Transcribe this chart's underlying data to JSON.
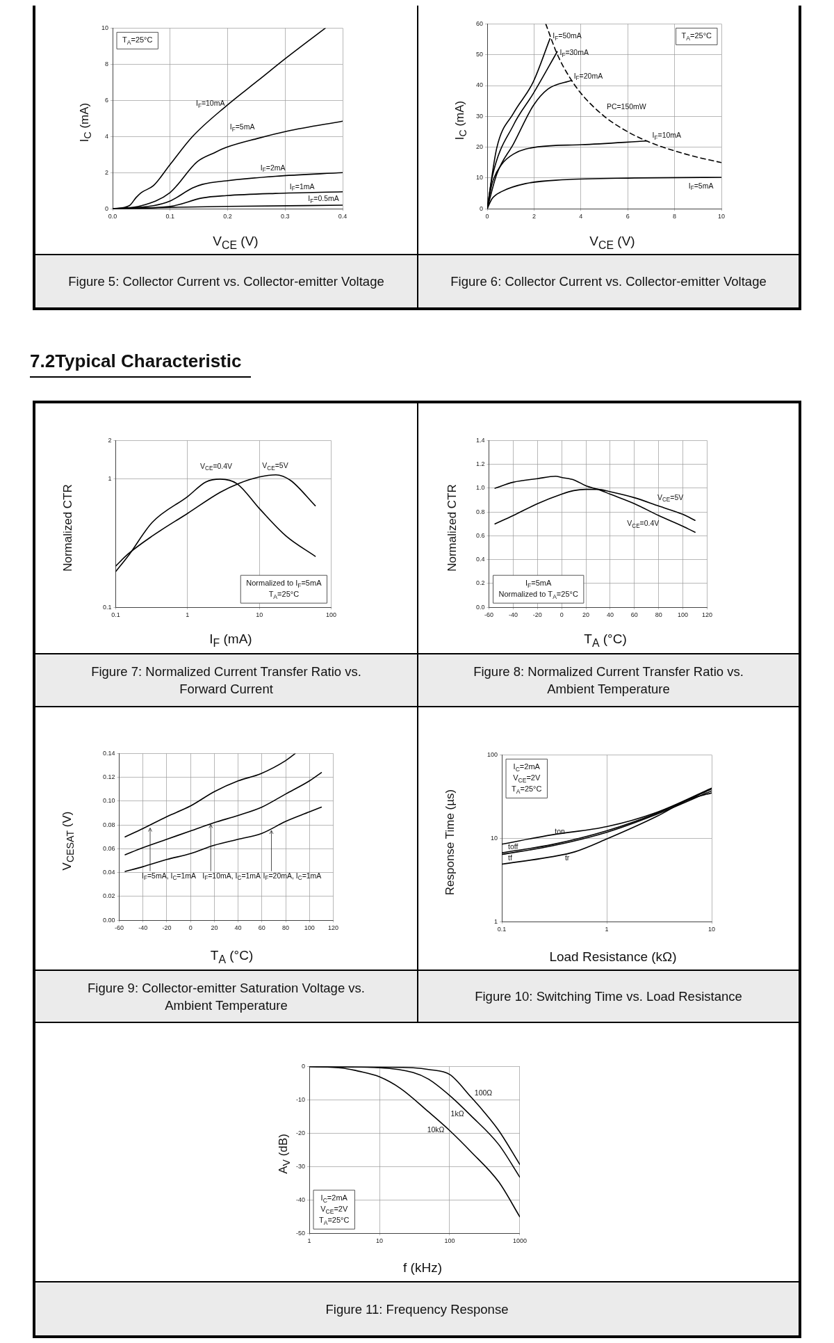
{
  "chart_data": [
    {
      "type": "line",
      "title": "Figure 5: Collector Current vs. Collector-emitter Voltage",
      "xlabel": "V$_{CE}$ (V)",
      "ylabel": "I$_{C}$ (mA)",
      "xlim": [
        0,
        0.4
      ],
      "xticks": [
        {
          "value": 0,
          "label": "0.0"
        },
        0.1,
        0.2,
        0.3,
        0.4
      ],
      "ylim": [
        0,
        10
      ],
      "yticks": [
        0,
        2,
        4,
        6,
        8,
        10
      ],
      "grid": true,
      "series": [
        {
          "color": "#000000",
          "x": [
            0,
            0.029,
            0.041,
            0.05,
            0.071,
            0.1,
            0.139,
            0.198,
            0.253,
            0.304,
            0.37
          ],
          "values": [
            0,
            0.17,
            0.63,
            0.9,
            1.28,
            2.45,
            4.0,
            5.7,
            7.1,
            8.4,
            10
          ]
        },
        {
          "color": "#000000",
          "x": [
            0,
            0.05,
            0.1,
            0.147,
            0.177,
            0.198,
            0.253,
            0.304,
            0.4
          ],
          "values": [
            0,
            0.17,
            0.9,
            2.6,
            3.1,
            3.4,
            3.9,
            4.3,
            4.85
          ]
        },
        {
          "color": "#000000",
          "x": [
            0,
            0.071,
            0.1,
            0.139,
            0.156,
            0.198,
            0.283,
            0.4
          ],
          "values": [
            0,
            0.17,
            0.43,
            1.15,
            1.35,
            1.55,
            1.8,
            2.0
          ]
        },
        {
          "color": "#000000",
          "x": [
            0,
            0.1,
            0.156,
            0.198,
            0.283,
            0.4
          ],
          "values": [
            0,
            0.13,
            0.6,
            0.73,
            0.85,
            0.94
          ]
        },
        {
          "color": "#000000",
          "x": [
            0,
            0.1,
            0.2,
            0.4
          ],
          "values": [
            0,
            0.08,
            0.13,
            0.2
          ]
        }
      ],
      "annotations": [
        "T$_{A}$=25°C",
        "I$_{F}$=10mA",
        "I$_{F}$=5mA",
        "I$_{F}$=2mA",
        "I$_{F}$=1mA",
        "I$_{F}$=0.5mA"
      ]
    },
    {
      "type": "line",
      "title": "Figure 6: Collector Current vs. Collector-emitter Voltage",
      "xlabel": "V$_{CE}$ (V)",
      "ylabel": "I$_{C}$ (mA)",
      "xlim": [
        0,
        10
      ],
      "xticks": [
        0,
        2,
        4,
        6,
        8,
        10
      ],
      "ylim": [
        0,
        60
      ],
      "yticks": [
        0,
        10,
        20,
        30,
        40,
        50,
        60
      ],
      "grid": true,
      "series": [
        {
          "color": "#000000",
          "x": [
            0,
            0.41,
            1.13,
            1.96,
            2.68
          ],
          "values": [
            0,
            19.8,
            31.1,
            41.1,
            55.2
          ]
        },
        {
          "color": "#000000",
          "x": [
            0,
            0.21,
            1.13,
            1.96,
            2.99
          ],
          "values": [
            0,
            10.2,
            27.3,
            37.3,
            51
          ]
        },
        {
          "color": "#000000",
          "x": [
            0,
            0.41,
            1.13,
            1.96,
            2.58,
            3.61
          ],
          "values": [
            0,
            11.3,
            21.2,
            33.4,
            38.8,
            41.7
          ]
        },
        {
          "color": "#000000",
          "x": [
            0,
            0.21,
            0.62,
            1.13,
            2.16,
            4.02,
            6.8
          ],
          "values": [
            0,
            8.2,
            14.4,
            17.8,
            20.1,
            20.8,
            22
          ]
        },
        {
          "color": "#000000",
          "x": [
            0,
            0.21,
            0.62,
            1.65,
            3.2,
            6.29,
            10
          ],
          "values": [
            0,
            3.3,
            5.6,
            8.2,
            9.4,
            10,
            10.2
          ]
        },
        {
          "color": "#000000",
          "line_style": "dashed",
          "x": [
            2.5,
            3,
            3.5,
            4,
            5,
            6,
            7,
            8,
            9,
            10
          ],
          "values": [
            60,
            50,
            42.9,
            37.5,
            30,
            25,
            21.4,
            18.8,
            16.7,
            15
          ]
        }
      ],
      "annotations": [
        "T$_{A}$=25°C",
        "I$_{F}$=50mA",
        "I$_{F}$=30mA",
        "I$_{F}$=20mA",
        "PC=150mW",
        "I$_{F}$=10mA",
        "I$_{F}$=5mA"
      ]
    },
    {
      "type": "line",
      "title": "Figure 7: Normalized Current Transfer Ratio vs. Forward Current",
      "subtitle": "7.2Typical Characteristic",
      "xlabel": "I$_{F}$ (mA)",
      "ylabel": "Normalized CTR",
      "log": "xy",
      "xlim": [
        0.1,
        100
      ],
      "xticks": [
        0.1,
        1,
        10,
        100
      ],
      "ylim": [
        0.1,
        2
      ],
      "yticks": [
        0.1,
        1,
        2
      ],
      "grid": true,
      "series": [
        {
          "color": "#000000",
          "x": [
            0.1,
            0.148,
            0.323,
            1,
            1.8,
            2.86,
            4.9,
            10,
            23.5,
            60
          ],
          "values": [
            0.19,
            0.25,
            0.46,
            0.73,
            0.95,
            1.0,
            0.92,
            0.59,
            0.36,
            0.25
          ]
        },
        {
          "color": "#000000",
          "x": [
            0.1,
            0.148,
            0.323,
            1,
            2.86,
            5.3,
            10,
            17,
            27,
            60
          ],
          "values": [
            0.21,
            0.26,
            0.36,
            0.54,
            0.79,
            0.93,
            1.04,
            1.08,
            0.98,
            0.62
          ]
        }
      ],
      "annotations": [
        "Normalized to I$_{F}$=5mA",
        "T$_{A}$=25°C",
        "V$_{CE}$=0.4V",
        "V$_{CE}$=5V"
      ]
    },
    {
      "type": "line",
      "title": "Figure 8: Normalized Current Transfer Ratio vs. Ambient Temperature",
      "xlabel": "T$_{A}$ (°C)",
      "ylabel": "Normalized CTR",
      "xlim": [
        -60,
        120
      ],
      "xticks": [
        -60,
        -40,
        -20,
        0,
        20,
        40,
        60,
        80,
        100,
        120
      ],
      "ylim": [
        0,
        1.4
      ],
      "yticks": [
        {
          "value": 0,
          "label": "0.0"
        },
        0.2,
        0.4,
        0.6,
        0.8,
        {
          "value": 1,
          "label": "1.0"
        },
        1.2,
        1.4
      ],
      "grid": true,
      "series": [
        {
          "color": "#000000",
          "x": [
            -55,
            -40,
            -20,
            -5,
            0,
            10,
            20,
            30,
            40,
            60,
            80,
            100,
            110
          ],
          "values": [
            1.0,
            1.05,
            1.08,
            1.1,
            1.09,
            1.07,
            1.02,
            0.99,
            0.95,
            0.87,
            0.77,
            0.68,
            0.63
          ]
        },
        {
          "color": "#000000",
          "x": [
            -55,
            -40,
            -20,
            0,
            10,
            20,
            30,
            40,
            60,
            80,
            100,
            110
          ],
          "values": [
            0.7,
            0.77,
            0.87,
            0.95,
            0.98,
            0.99,
            0.99,
            0.97,
            0.92,
            0.85,
            0.78,
            0.73
          ]
        }
      ],
      "annotations": [
        "I$_{F}$=5mA",
        "Normalized to T$_{A}$=25°C",
        "V$_{CE}$=5V",
        "V$_{CE}$=0.4V"
      ]
    },
    {
      "type": "line",
      "title": "Figure 9: Collector-emitter Saturation Voltage vs. Ambient Temperature",
      "xlabel": "T$_{A}$ (°C)",
      "ylabel": "V$_{CESAT}$ (V)",
      "xlim": [
        -60,
        120
      ],
      "xticks": [
        -60,
        -40,
        -20,
        0,
        20,
        40,
        60,
        80,
        100,
        120
      ],
      "ylim": [
        0,
        0.14
      ],
      "yticks": [
        {
          "value": 0,
          "label": "0.00"
        },
        0.02,
        0.04,
        0.06,
        0.08,
        {
          "value": 0.1,
          "label": "0.10"
        },
        0.12,
        0.14
      ],
      "grid": true,
      "series": [
        {
          "color": "#000000",
          "x": [
            -55,
            -40,
            -20,
            0,
            20,
            40,
            59,
            80,
            88
          ],
          "values": [
            0.07,
            0.077,
            0.087,
            0.096,
            0.108,
            0.117,
            0.123,
            0.134,
            0.14
          ]
        },
        {
          "color": "#000000",
          "x": [
            -55,
            -40,
            -20,
            0,
            20,
            40,
            60,
            80,
            100,
            110
          ],
          "values": [
            0.055,
            0.061,
            0.068,
            0.075,
            0.082,
            0.088,
            0.095,
            0.106,
            0.117,
            0.124
          ]
        },
        {
          "color": "#000000",
          "x": [
            -55,
            -40,
            -20,
            0,
            20,
            40,
            60,
            80,
            100,
            110
          ],
          "values": [
            0.041,
            0.045,
            0.051,
            0.056,
            0.063,
            0.068,
            0.073,
            0.083,
            0.091,
            0.095
          ]
        }
      ],
      "annotations": [
        {
          "text": "I$_{F}$=5mA, I$_{C}$=1mA",
          "x": -34,
          "y": 0.078
        },
        {
          "text": "I$_{F}$=10mA, I$_{C}$=1mA",
          "x": 17,
          "y": 0.081
        },
        {
          "text": "I$_{F}$=20mA, I$_{C}$=1mA",
          "x": 68,
          "y": 0.076
        }
      ]
    },
    {
      "type": "line",
      "title": "Figure 10: Switching Time vs. Load Resistance",
      "xlabel": "Load Resistance (kΩ)",
      "ylabel": "Response Time (µs)",
      "log": "xy",
      "xlim": [
        0.1,
        10
      ],
      "xticks": [
        0.1,
        1,
        10
      ],
      "ylim": [
        1,
        100
      ],
      "yticks": [
        1,
        10,
        100
      ],
      "grid": true,
      "series": [
        {
          "color": "#000000",
          "x": [
            0.1,
            0.3,
            1,
            3,
            10
          ],
          "values": [
            8.5,
            11,
            13.8,
            20.5,
            40
          ]
        },
        {
          "color": "#000000",
          "x": [
            0.1,
            0.3,
            1,
            3,
            10
          ],
          "values": [
            6.7,
            8.4,
            12.3,
            20,
            39
          ]
        },
        {
          "color": "#000000",
          "x": [
            0.1,
            0.3,
            1,
            3,
            10
          ],
          "values": [
            6.4,
            8.1,
            11.8,
            19.4,
            37
          ]
        },
        {
          "color": "#000000",
          "x": [
            0.1,
            0.3,
            0.5,
            1,
            3,
            6,
            10
          ],
          "values": [
            4.9,
            6,
            6.9,
            9.8,
            18.3,
            29,
            35
          ]
        }
      ],
      "annotations": [
        "I$_{C}$=2mA",
        "V$_{CE}$=2V",
        "T$_{A}$=25°C",
        "ton",
        "toff",
        "tf",
        "tr"
      ]
    },
    {
      "type": "line",
      "title": "Figure 11: Frequency Response",
      "xlabel": "f (kHz)",
      "ylabel": "A$_{V}$ (dB)",
      "log": "x",
      "xlim": [
        1,
        1000
      ],
      "xticks": [
        1,
        10,
        100,
        1000
      ],
      "ylim": [
        -50,
        0
      ],
      "yticks": [
        -50,
        -40,
        -30,
        -20,
        -10,
        0
      ],
      "grid": true,
      "series": [
        {
          "color": "#000000",
          "x": [
            1,
            10,
            30,
            50,
            100,
            200,
            300,
            500,
            1000
          ],
          "values": [
            0,
            -0.2,
            -0.4,
            -0.9,
            -2.4,
            -9.1,
            -13.3,
            -19.2,
            -29.4
          ]
        },
        {
          "color": "#000000",
          "x": [
            1,
            10,
            30,
            50,
            100,
            200,
            500,
            1000
          ],
          "values": [
            0,
            -0.4,
            -1.8,
            -3.8,
            -8.7,
            -14.7,
            -23.4,
            -33.2
          ]
        },
        {
          "color": "#000000",
          "x": [
            1,
            3,
            5,
            10,
            20,
            50,
            100,
            200,
            500,
            1000
          ],
          "values": [
            0,
            -0.5,
            -1.4,
            -3.1,
            -6.6,
            -13.6,
            -19.2,
            -25.5,
            -34.6,
            -45.1
          ]
        }
      ],
      "annotations": [
        "I$_{C}$=2mA",
        "V$_{CE}$=2V",
        "T$_{A}$=25°C",
        "100Ω",
        "1kΩ",
        "10kΩ"
      ]
    }
  ]
}
